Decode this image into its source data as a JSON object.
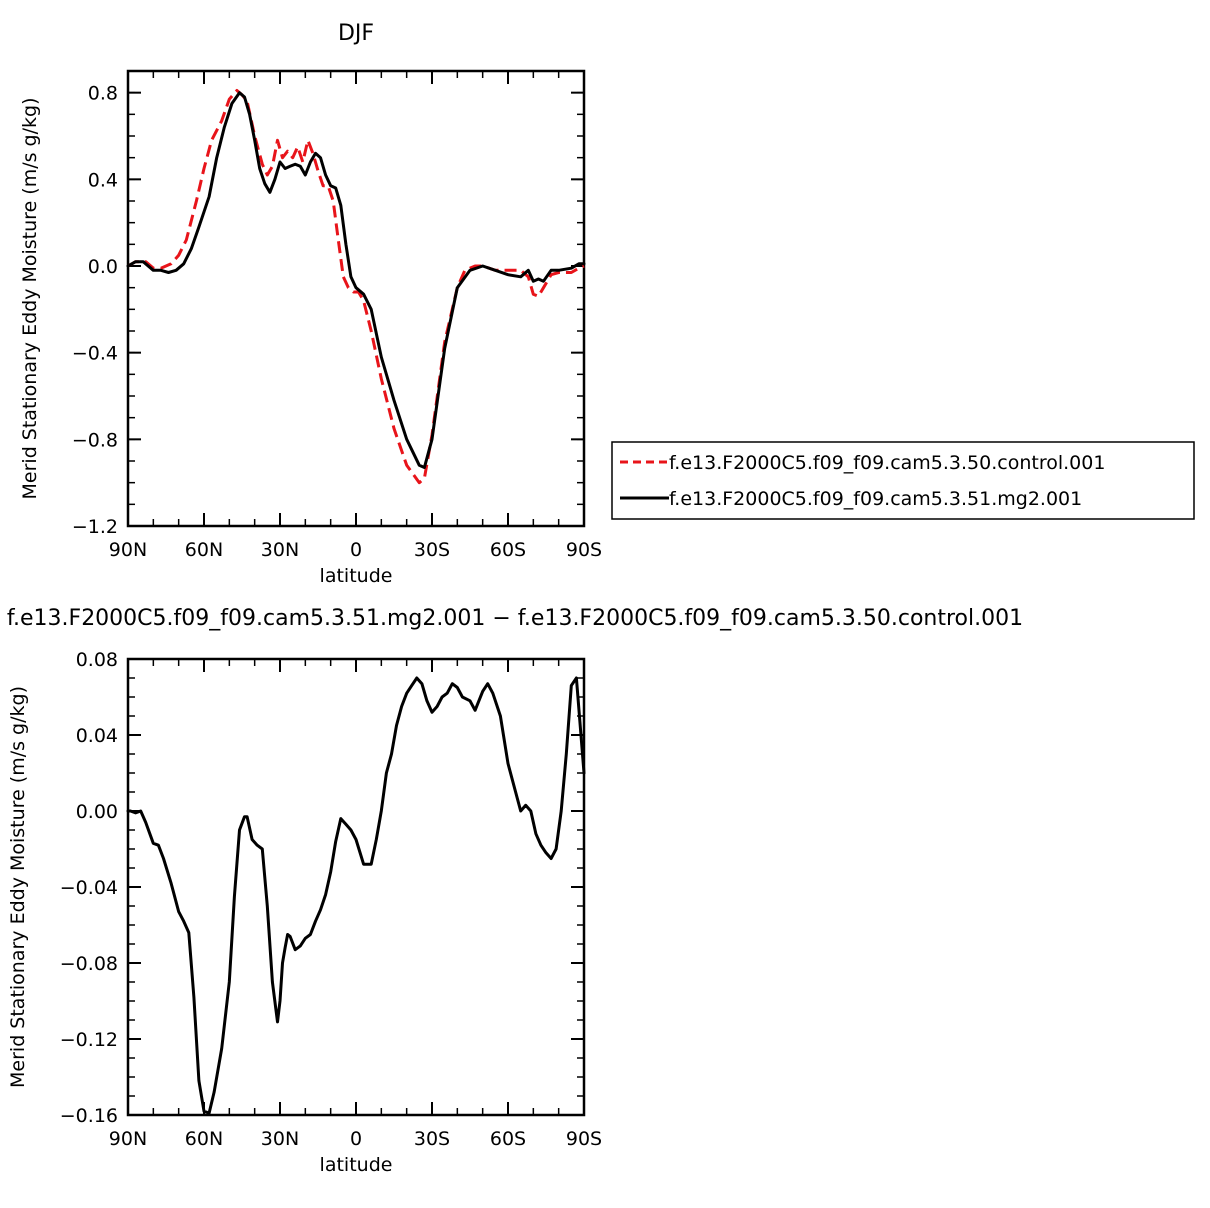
{
  "chart_data": [
    {
      "type": "line",
      "title": "DJF",
      "xlabel": "latitude",
      "ylabel": "Merid Stationary Eddy Moisture (m/s g/kg)",
      "xlim": [
        90,
        -90
      ],
      "ylim": [
        -1.2,
        0.9
      ],
      "x_tick_values": [
        90,
        60,
        30,
        0,
        -30,
        -60,
        -90
      ],
      "x_tick_labels": [
        "90N",
        "60N",
        "30N",
        "0",
        "30S",
        "60S",
        "90S"
      ],
      "y_tick_values": [
        0.8,
        0.4,
        0.0,
        -0.4,
        -0.8,
        -1.2
      ],
      "y_tick_labels": [
        "0.8",
        "0.4",
        "0.0",
        "−0.4",
        "−0.8",
        "−1.2"
      ],
      "legend": "right",
      "series": [
        {
          "name": "f.e13.F2000C5.f09_f09.cam5.3.50.control.001",
          "color": "#e8141a",
          "dash": "dashed",
          "x": [
            90,
            87,
            83,
            80,
            77,
            73,
            70,
            67,
            63,
            60,
            57,
            53,
            50,
            47,
            45,
            43,
            40,
            37,
            35,
            33,
            31,
            29,
            27,
            25,
            23,
            21,
            19,
            17,
            15,
            13,
            11,
            9,
            7,
            5,
            3,
            1,
            -1,
            -3,
            -6,
            -10,
            -15,
            -20,
            -25,
            -27,
            -30,
            -35,
            -40,
            -43,
            -47,
            -50,
            -55,
            -60,
            -65,
            -68,
            -70,
            -72,
            -74,
            -77,
            -80,
            -85,
            -88,
            -90
          ],
          "y": [
            0.0,
            0.02,
            0.02,
            -0.01,
            -0.01,
            0.01,
            0.05,
            0.12,
            0.3,
            0.45,
            0.58,
            0.67,
            0.77,
            0.81,
            0.79,
            0.76,
            0.6,
            0.47,
            0.42,
            0.46,
            0.58,
            0.5,
            0.53,
            0.5,
            0.55,
            0.48,
            0.58,
            0.52,
            0.44,
            0.37,
            0.37,
            0.3,
            0.12,
            -0.05,
            -0.1,
            -0.12,
            -0.12,
            -0.16,
            -0.3,
            -0.52,
            -0.75,
            -0.92,
            -1.0,
            -0.98,
            -0.78,
            -0.35,
            -0.1,
            -0.02,
            0.0,
            0.0,
            -0.02,
            -0.02,
            -0.02,
            -0.05,
            -0.13,
            -0.14,
            -0.1,
            -0.04,
            -0.03,
            -0.03,
            -0.01,
            0.0
          ]
        },
        {
          "name": "f.e13.F2000C5.f09_f09.cam5.3.51.mg2.001",
          "color": "#000000",
          "dash": "solid",
          "x": [
            90,
            87,
            84,
            80,
            77,
            74,
            71,
            68,
            65,
            62,
            58,
            55,
            52,
            49,
            46,
            44,
            42,
            40,
            38,
            36,
            34,
            32,
            30,
            28,
            26,
            24,
            22,
            20,
            18,
            16,
            14,
            12,
            10,
            8,
            6,
            4,
            2,
            0,
            -3,
            -6,
            -10,
            -15,
            -20,
            -25,
            -27,
            -30,
            -35,
            -40,
            -45,
            -50,
            -55,
            -60,
            -65,
            -68,
            -70,
            -72,
            -74,
            -77,
            -80,
            -85,
            -88,
            -90
          ],
          "y": [
            0.0,
            0.02,
            0.02,
            -0.02,
            -0.02,
            -0.03,
            -0.02,
            0.01,
            0.08,
            0.18,
            0.32,
            0.5,
            0.64,
            0.75,
            0.8,
            0.78,
            0.7,
            0.58,
            0.45,
            0.38,
            0.34,
            0.4,
            0.48,
            0.45,
            0.46,
            0.47,
            0.46,
            0.42,
            0.48,
            0.52,
            0.5,
            0.42,
            0.37,
            0.36,
            0.28,
            0.1,
            -0.05,
            -0.1,
            -0.13,
            -0.2,
            -0.42,
            -0.62,
            -0.8,
            -0.92,
            -0.93,
            -0.8,
            -0.38,
            -0.1,
            -0.02,
            0.0,
            -0.02,
            -0.04,
            -0.05,
            -0.02,
            -0.07,
            -0.06,
            -0.07,
            -0.02,
            -0.02,
            -0.01,
            0.01,
            0.01
          ]
        }
      ]
    },
    {
      "type": "line",
      "title": "f.e13.F2000C5.f09_f09.cam5.3.51.mg2.001 − f.e13.F2000C5.f09_f09.cam5.3.50.control.001",
      "xlabel": "latitude",
      "ylabel": "Merid Stationary Eddy Moisture (m/s g/kg)",
      "xlim": [
        90,
        -90
      ],
      "ylim": [
        -0.16,
        0.08
      ],
      "x_tick_values": [
        90,
        60,
        30,
        0,
        -30,
        -60,
        -90
      ],
      "x_tick_labels": [
        "90N",
        "60N",
        "30N",
        "0",
        "30S",
        "60S",
        "90S"
      ],
      "y_tick_values": [
        0.08,
        0.04,
        0.0,
        -0.04,
        -0.08,
        -0.12,
        -0.16
      ],
      "y_tick_labels": [
        "0.08",
        "0.04",
        "0.00",
        "−0.04",
        "−0.08",
        "−0.12",
        "−0.16"
      ],
      "series": [
        {
          "color": "#000000",
          "dash": "solid",
          "x": [
            90,
            89,
            87,
            85,
            83,
            80,
            78,
            76,
            73,
            70,
            68,
            66,
            64,
            62,
            60,
            58,
            56,
            53,
            50,
            48,
            46,
            44,
            43,
            41,
            39,
            37,
            35,
            33,
            31,
            30,
            29,
            28,
            27,
            26,
            24,
            22,
            20,
            18,
            16,
            14,
            12,
            10,
            8,
            6,
            4,
            2,
            0,
            -3,
            -6,
            -8,
            -10,
            -12,
            -14,
            -16,
            -18,
            -20,
            -22,
            -24,
            -26,
            -28,
            -30,
            -32,
            -34,
            -36,
            -38,
            -40,
            -42,
            -45,
            -47,
            -50,
            -52,
            -54,
            -57,
            -60,
            -63,
            -65,
            -67,
            -69,
            -71,
            -73,
            -75,
            -77,
            -79,
            -81,
            -83,
            -85,
            -87,
            -90
          ],
          "y": [
            0.0,
            0.0,
            -0.001,
            0.0,
            -0.006,
            -0.017,
            -0.018,
            -0.025,
            -0.038,
            -0.053,
            -0.058,
            -0.064,
            -0.098,
            -0.142,
            -0.158,
            -0.159,
            -0.148,
            -0.125,
            -0.09,
            -0.045,
            -0.01,
            -0.003,
            -0.003,
            -0.015,
            -0.018,
            -0.02,
            -0.05,
            -0.09,
            -0.111,
            -0.1,
            -0.08,
            -0.072,
            -0.065,
            -0.066,
            -0.073,
            -0.071,
            -0.067,
            -0.065,
            -0.058,
            -0.052,
            -0.044,
            -0.032,
            -0.016,
            -0.004,
            -0.007,
            -0.01,
            -0.015,
            -0.028,
            -0.028,
            -0.015,
            0.0,
            0.02,
            0.03,
            0.045,
            0.055,
            0.062,
            0.066,
            0.07,
            0.067,
            0.058,
            0.052,
            0.055,
            0.06,
            0.062,
            0.067,
            0.065,
            0.06,
            0.058,
            0.053,
            0.063,
            0.067,
            0.062,
            0.05,
            0.025,
            0.01,
            0.0,
            0.003,
            0.0,
            -0.012,
            -0.018,
            -0.022,
            -0.025,
            -0.02,
            0.0,
            0.03,
            0.066,
            0.07,
            0.02
          ]
        }
      ]
    }
  ]
}
